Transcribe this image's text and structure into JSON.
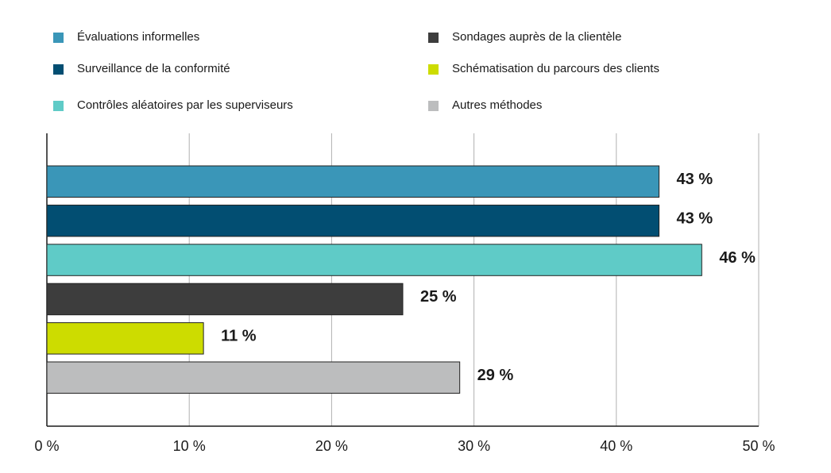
{
  "chart_data": {
    "type": "hbar",
    "categories": [
      "Évaluations informelles",
      "Surveillance de la conformité",
      "Contrôles aléatoires par les superviseurs",
      "Sondages auprès de la clientèle",
      "Schématisation du parcours des clients",
      "Autres méthodes"
    ],
    "values": [
      43,
      43,
      46,
      25,
      11,
      29
    ],
    "value_labels": [
      "43 %",
      "43 %",
      "46 %",
      "25 %",
      "11 %",
      "29 %"
    ],
    "colors": [
      "#3a96b8",
      "#024e72",
      "#5fcbc7",
      "#3d3d3d",
      "#cddc00",
      "#bcbdbe"
    ],
    "xlim": [
      0,
      50
    ],
    "xticks": [
      {
        "value": 0,
        "label": "0 %"
      },
      {
        "value": 10,
        "label": "10 %"
      },
      {
        "value": 20,
        "label": "20 %"
      },
      {
        "value": 30,
        "label": "30 %"
      },
      {
        "value": 40,
        "label": "40 %"
      },
      {
        "value": 50,
        "label": "50 %"
      }
    ],
    "grid": true
  }
}
